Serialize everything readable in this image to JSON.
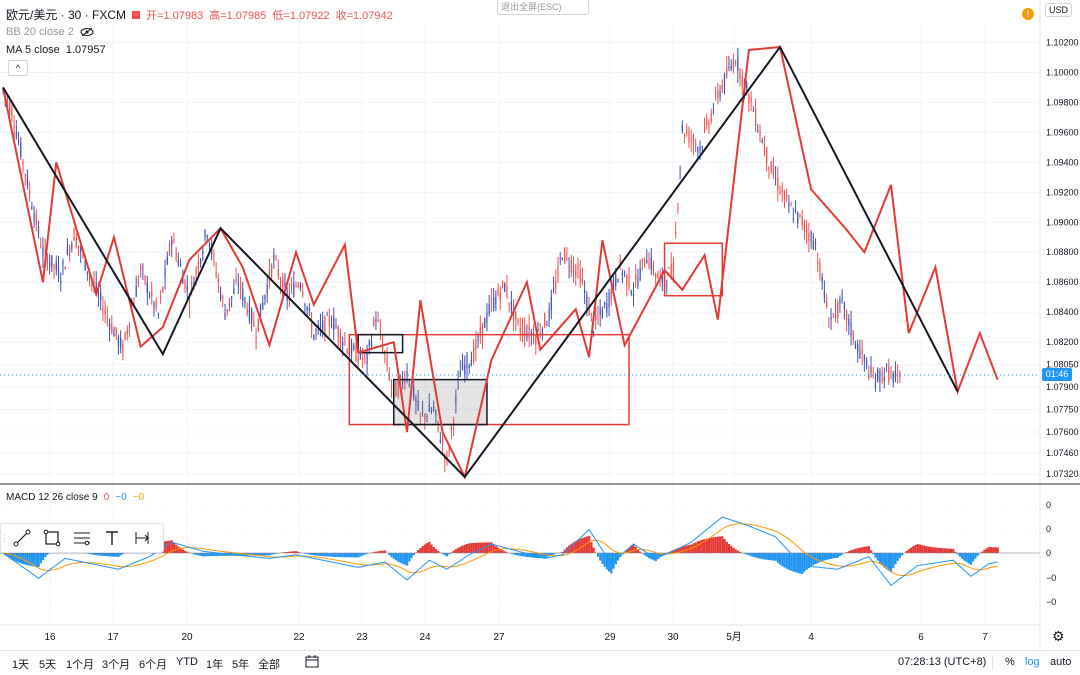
{
  "header": {
    "symbol": "欧元/美元 · 30 · FXCM",
    "ohlc": [
      "开=1.07983",
      "高=1.07985",
      "低=1.07922",
      "收=1.07942"
    ],
    "bb_label": "BB 20 close 2",
    "ma_label": "MA 5 close",
    "ma_value": "1.07957",
    "exit_fullscreen": "退出全屏(ESC)",
    "currency": "USD",
    "warning": "!"
  },
  "price_axis": {
    "ticks": [
      "1.10200",
      "1.10000",
      "1.09800",
      "1.09600",
      "1.09400",
      "1.09200",
      "1.09000",
      "1.08800",
      "1.08600",
      "1.08400",
      "1.08200",
      "1.08050",
      "1.07900",
      "1.07750",
      "1.07600",
      "1.07460",
      "1.07320"
    ],
    "countdown": "01:46"
  },
  "macd": {
    "label": "MACD 12 26 close 9",
    "values": [
      "0",
      "−0",
      "−0"
    ],
    "axis_ticks": [
      "0",
      "0",
      "0",
      "−0",
      "−0"
    ]
  },
  "time_axis": {
    "labels": [
      "16",
      "17",
      "20",
      "22",
      "23",
      "24",
      "27",
      "29",
      "30",
      "5月",
      "4",
      "6",
      "7"
    ]
  },
  "drawing_tools": [
    "trend-line-icon",
    "rectangle-icon",
    "fib-icon",
    "text-icon",
    "date-range-icon"
  ],
  "bottom_bar": {
    "ranges": [
      "1天",
      "5天",
      "1个月",
      "3个月",
      "6个月",
      "YTD",
      "1年",
      "5年",
      "全部"
    ],
    "time": "07:28:13 (UTC+8)",
    "percent": "%",
    "log": "log",
    "auto": "auto"
  },
  "colors": {
    "bull": "#3f51b5",
    "bear": "#ef5350",
    "zigzag_red": "#e53935",
    "zigzag_black": "#131722",
    "macd_blue": "#2196f3",
    "signal_orange": "#ff9800"
  },
  "chart_data": {
    "type": "candlestick",
    "ylim": [
      1.0728,
      1.1035
    ],
    "price_path": [
      [
        0,
        1.0988
      ],
      [
        2,
        1.0975
      ],
      [
        6,
        1.092
      ],
      [
        9,
        1.088
      ],
      [
        13,
        1.0865
      ],
      [
        16,
        1.0892
      ],
      [
        20,
        1.0862
      ],
      [
        23,
        1.084
      ],
      [
        27,
        1.0815
      ],
      [
        31,
        1.0868
      ],
      [
        35,
        1.0838
      ],
      [
        38,
        1.089
      ],
      [
        42,
        1.085
      ],
      [
        46,
        1.0895
      ],
      [
        50,
        1.084
      ],
      [
        53,
        1.086
      ],
      [
        57,
        1.0828
      ],
      [
        61,
        1.0875
      ],
      [
        64,
        1.085
      ],
      [
        67,
        1.0862
      ],
      [
        70,
        1.0825
      ],
      [
        74,
        1.0835
      ],
      [
        78,
        1.0815
      ],
      [
        82,
        1.0808
      ],
      [
        84,
        1.0838
      ],
      [
        88,
        1.0785
      ],
      [
        91,
        1.08
      ],
      [
        94,
        1.077
      ],
      [
        97,
        1.0775
      ],
      [
        100,
        1.074
      ],
      [
        103,
        1.08
      ],
      [
        106,
        1.0812
      ],
      [
        110,
        1.0845
      ],
      [
        113,
        1.0858
      ],
      [
        116,
        1.083
      ],
      [
        120,
        1.0824
      ],
      [
        123,
        1.0838
      ],
      [
        126,
        1.088
      ],
      [
        130,
        1.0865
      ],
      [
        133,
        1.083
      ],
      [
        136,
        1.0845
      ],
      [
        139,
        1.087
      ],
      [
        142,
        1.0855
      ],
      [
        145,
        1.0878
      ],
      [
        148,
        1.086
      ],
      [
        151,
        1.0868
      ],
      [
        153,
        1.0962
      ],
      [
        157,
        1.095
      ],
      [
        161,
        1.0985
      ],
      [
        165,
        1.101
      ],
      [
        169,
        1.0975
      ],
      [
        173,
        1.0935
      ],
      [
        177,
        1.091
      ],
      [
        180,
        1.09
      ],
      [
        183,
        1.0885
      ],
      [
        186,
        1.0835
      ],
      [
        189,
        1.0845
      ],
      [
        192,
        1.082
      ],
      [
        196,
        1.0795
      ],
      [
        199,
        1.08
      ],
      [
        202,
        1.0794
      ]
    ],
    "zigzag_black": [
      [
        0,
        1.099
      ],
      [
        36,
        1.0812
      ],
      [
        49,
        1.0896
      ],
      [
        104,
        1.073
      ],
      [
        175,
        1.1017
      ],
      [
        215,
        1.0787
      ]
    ],
    "zigzag_red": [
      [
        0,
        1.099
      ],
      [
        9,
        1.086
      ],
      [
        12,
        1.094
      ],
      [
        21,
        1.0852
      ],
      [
        25,
        1.089
      ],
      [
        31,
        1.0817
      ],
      [
        36,
        1.083
      ],
      [
        42,
        1.0875
      ],
      [
        49,
        1.0896
      ],
      [
        54,
        1.087
      ],
      [
        60,
        1.0818
      ],
      [
        66,
        1.088
      ],
      [
        70,
        1.0845
      ],
      [
        77,
        1.0885
      ],
      [
        80,
        1.0813
      ],
      [
        88,
        1.082
      ],
      [
        91,
        1.076
      ],
      [
        94,
        1.0848
      ],
      [
        99,
        1.076
      ],
      [
        104,
        1.073
      ],
      [
        110,
        1.0808
      ],
      [
        118,
        1.086
      ],
      [
        121,
        1.0815
      ],
      [
        129,
        1.0842
      ],
      [
        132,
        1.081
      ],
      [
        135,
        1.0888
      ],
      [
        140,
        1.0818
      ],
      [
        149,
        1.0868
      ],
      [
        153,
        1.0855
      ],
      [
        158,
        1.0878
      ],
      [
        161,
        1.0835
      ],
      [
        168,
        1.1015
      ],
      [
        175,
        1.1017
      ],
      [
        182,
        1.0922
      ],
      [
        190,
        1.0895
      ],
      [
        194,
        1.088
      ],
      [
        200,
        1.0925
      ],
      [
        204,
        1.0826
      ],
      [
        210,
        1.087
      ],
      [
        215,
        1.0787
      ],
      [
        220,
        1.0826
      ],
      [
        224,
        1.0795
      ]
    ],
    "boxes": [
      {
        "x": [
          78,
          141
        ],
        "y": [
          1.0765,
          1.0825
        ],
        "stroke": "#e53935",
        "fill": "none"
      },
      {
        "x": [
          80,
          90
        ],
        "y": [
          1.0813,
          1.0825
        ],
        "stroke": "#131722",
        "fill": "none"
      },
      {
        "x": [
          88,
          109
        ],
        "y": [
          1.0765,
          1.0795
        ],
        "stroke": "#131722",
        "fill": "rgba(120,120,120,0.2)"
      },
      {
        "x": [
          149,
          162
        ],
        "y": [
          1.0851,
          1.0886
        ],
        "stroke": "#e53935",
        "fill": "none"
      }
    ],
    "macd_series": [
      [
        0,
        0
      ],
      [
        8,
        -1.4
      ],
      [
        14,
        -0.3
      ],
      [
        20,
        -0.6
      ],
      [
        26,
        -0.9
      ],
      [
        33,
        -0.2
      ],
      [
        38,
        0.6
      ],
      [
        45,
        0.1
      ],
      [
        52,
        -0.1
      ],
      [
        60,
        -0.3
      ],
      [
        66,
        -0.1
      ],
      [
        72,
        -0.4
      ],
      [
        80,
        -0.8
      ],
      [
        86,
        -0.5
      ],
      [
        91,
        -1.5
      ],
      [
        96,
        -0.4
      ],
      [
        100,
        -0.9
      ],
      [
        105,
        -0.1
      ],
      [
        110,
        0.5
      ],
      [
        116,
        0.1
      ],
      [
        122,
        -0.3
      ],
      [
        126,
        -0.1
      ],
      [
        132,
        1.3
      ],
      [
        137,
        -0.6
      ],
      [
        142,
        0.5
      ],
      [
        147,
        -0.3
      ],
      [
        151,
        0.1
      ],
      [
        155,
        0.6
      ],
      [
        162,
        2.0
      ],
      [
        168,
        1.5
      ],
      [
        174,
        0.9
      ],
      [
        180,
        -0.7
      ],
      [
        188,
        -0.9
      ],
      [
        195,
        -0.2
      ],
      [
        200,
        -1.8
      ],
      [
        206,
        -0.7
      ],
      [
        214,
        -0.4
      ],
      [
        218,
        -1.3
      ],
      [
        222,
        -0.6
      ],
      [
        224,
        -0.5
      ]
    ]
  }
}
